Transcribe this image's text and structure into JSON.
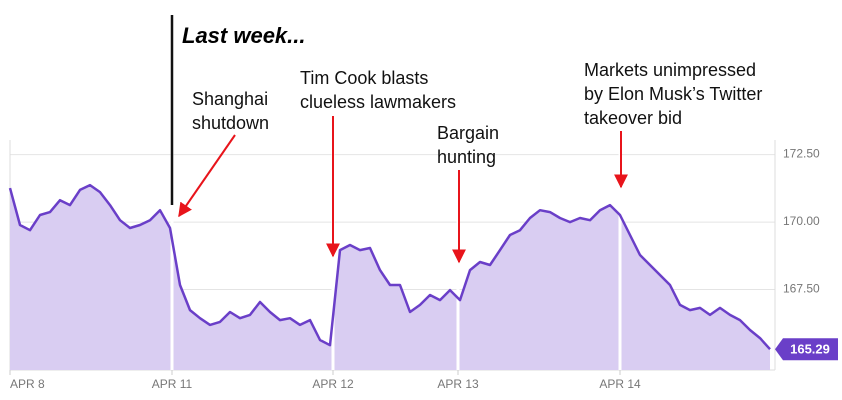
{
  "chart_data": {
    "type": "area",
    "title": "Last week...",
    "annotations": [
      {
        "lines": [
          "Shanghai",
          "shutdown"
        ]
      },
      {
        "lines": [
          "Tim Cook blasts",
          "clueless lawmakers"
        ]
      },
      {
        "lines": [
          "Bargain",
          "hunting"
        ]
      },
      {
        "lines": [
          "Markets unimpressed",
          "by Elon Musk’s Twitter",
          "takeover bid"
        ]
      }
    ],
    "x": [
      0,
      1,
      2,
      3,
      4,
      5,
      6,
      7,
      8,
      9,
      10,
      11,
      12,
      13,
      14,
      15,
      16,
      17,
      18,
      19,
      20,
      21,
      22,
      23,
      24,
      25,
      26,
      27,
      28,
      29,
      30,
      31,
      32,
      33,
      34,
      35,
      36,
      37,
      38,
      39,
      40,
      41,
      42,
      43,
      44,
      45,
      46,
      47,
      48,
      49,
      50,
      51,
      52,
      53,
      54,
      55,
      56,
      57,
      58,
      59,
      60,
      61,
      62,
      63,
      64,
      65,
      66,
      67,
      68,
      69,
      70,
      71,
      72,
      73,
      74,
      75,
      76
    ],
    "series": [
      {
        "color": "#6a3fc8",
        "fill": "#d9cdf2",
        "values": [
          171.26,
          169.89,
          169.7,
          170.26,
          170.37,
          170.81,
          170.63,
          171.19,
          171.37,
          171.11,
          170.63,
          170.07,
          169.78,
          169.89,
          170.07,
          170.44,
          169.78,
          167.67,
          166.74,
          166.44,
          166.19,
          166.3,
          166.67,
          166.44,
          166.56,
          167.04,
          166.67,
          166.37,
          166.44,
          166.19,
          166.37,
          165.63,
          165.44,
          168.96,
          169.15,
          168.96,
          169.04,
          168.22,
          167.67,
          167.67,
          166.67,
          166.93,
          167.3,
          167.11,
          167.48,
          167.11,
          168.22,
          168.52,
          168.41,
          168.96,
          169.52,
          169.7,
          170.15,
          170.44,
          170.37,
          170.15,
          170.0,
          170.15,
          170.07,
          170.44,
          170.63,
          170.26,
          169.52,
          168.78,
          168.41,
          168.04,
          167.67,
          166.93,
          166.74,
          166.82,
          166.56,
          166.82,
          166.56,
          166.37,
          166.0,
          165.7,
          165.29
        ]
      }
    ],
    "xlim": [
      0,
      76.5
    ],
    "xticks": [
      {
        "value": 0,
        "label": "APR 8"
      },
      {
        "value": 16.2,
        "label": "APR 11"
      },
      {
        "value": 32.3,
        "label": "APR 12"
      },
      {
        "value": 44.8,
        "label": "APR 13"
      },
      {
        "value": 61,
        "label": "APR 14"
      }
    ],
    "ylim": [
      164.52,
      173.04
    ],
    "yticks": [
      {
        "value": 167.5,
        "label": "167.50"
      },
      {
        "value": 170,
        "label": "170.00"
      },
      {
        "value": 172.5,
        "label": "172.50"
      }
    ],
    "grid": true
  }
}
